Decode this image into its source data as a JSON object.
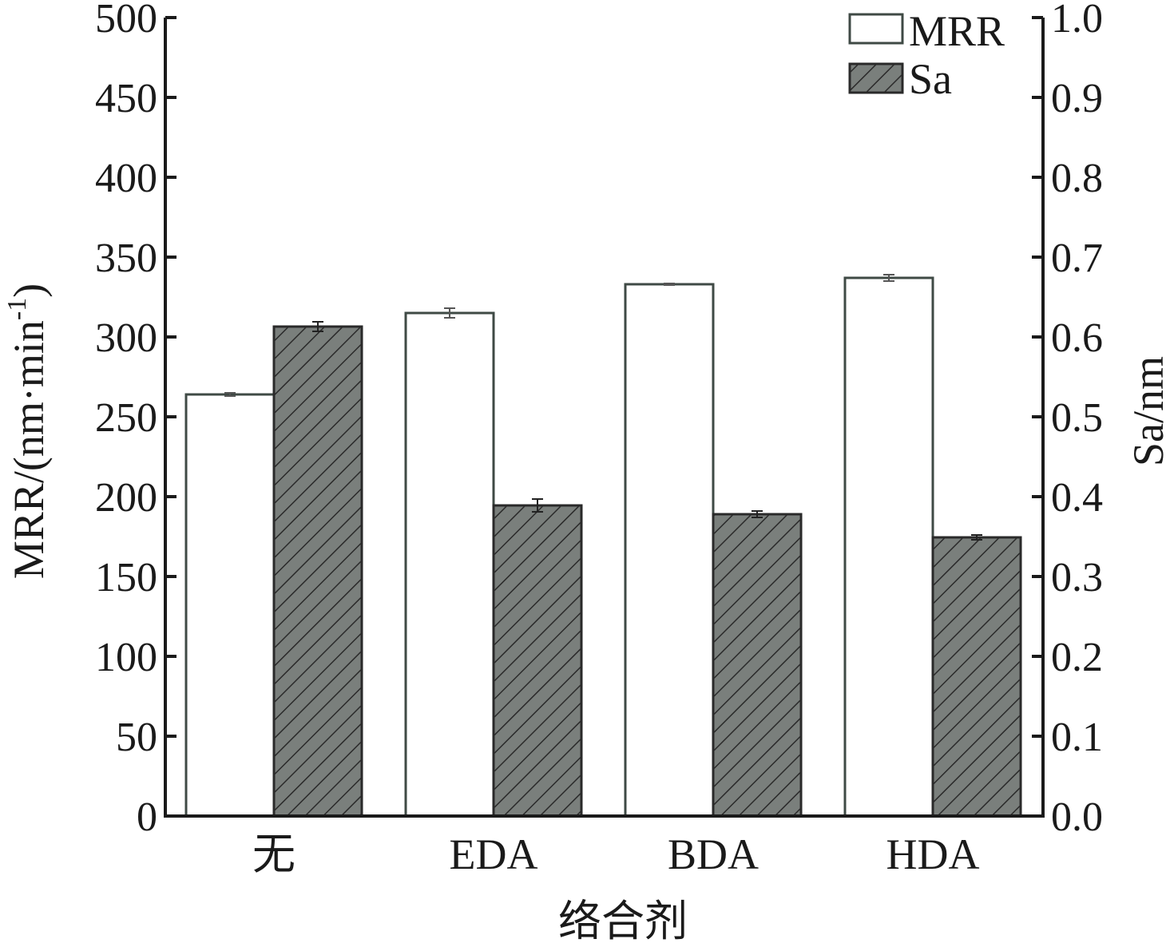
{
  "chart_data": {
    "type": "bar",
    "categories": [
      "无",
      "EDA",
      "BDA",
      "HDA"
    ],
    "xlabel": "络合剂",
    "ylabel_left_main": "MRR/(nm·min",
    "ylabel_left_sup": "-1",
    "ylabel_left_close": ")",
    "ylabel_right": "Sa/nm",
    "ylim_left": [
      0,
      500
    ],
    "ylim_right": [
      0,
      1.0
    ],
    "yticks_left": [
      "0",
      "50",
      "100",
      "150",
      "200",
      "250",
      "300",
      "350",
      "400",
      "450",
      "500"
    ],
    "yticks_right": [
      "0.0",
      "0.1",
      "0.2",
      "0.3",
      "0.4",
      "0.5",
      "0.6",
      "0.7",
      "0.8",
      "0.9",
      "1.0"
    ],
    "series": [
      {
        "name": "MRR",
        "axis": "left",
        "values": [
          264,
          315,
          333,
          337
        ],
        "errors": [
          1,
          3,
          0.5,
          2
        ],
        "fill": "#ffffff",
        "hatch": false
      },
      {
        "name": "Sa",
        "axis": "right",
        "values": [
          0.613,
          0.389,
          0.378,
          0.349
        ],
        "errors": [
          0.006,
          0.008,
          0.004,
          0.003
        ],
        "fill": "#7a7f7c",
        "hatch": true
      }
    ],
    "legend": "top-right",
    "grid": false,
    "colors": {
      "axis": "#1a1a1a",
      "bar_stroke": "#3f4a45",
      "hatch_line": "#2a2a2a",
      "sa_fill": "#7a7f7c"
    }
  }
}
